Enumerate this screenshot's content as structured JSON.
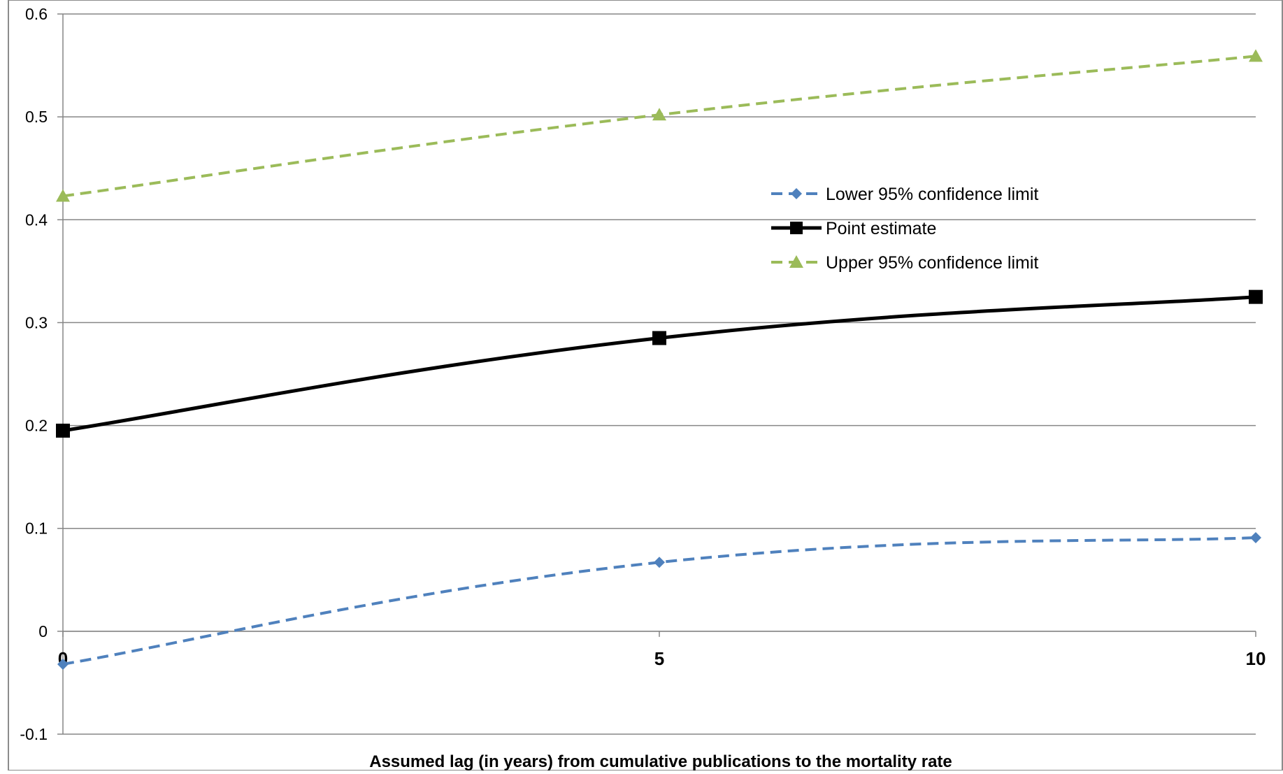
{
  "chart_data": {
    "type": "line",
    "title": "",
    "xlabel": "Assumed lag (in years) from cumulative publications to the mortality rate",
    "ylabel": "",
    "x": [
      0,
      5,
      10
    ],
    "xlim": [
      0,
      10
    ],
    "ylim": [
      -0.1,
      0.6
    ],
    "x_ticks": [
      "0",
      "5",
      "10"
    ],
    "y_ticks": [
      "0.6",
      "0.5",
      "0.4",
      "0.3",
      "0.2",
      "0.1",
      "0",
      "-0.1"
    ],
    "grid": "horizontal",
    "legend_position": "upper-middle-right",
    "series": [
      {
        "name": "Lower 95% confidence limit",
        "values": [
          -0.032,
          0.067,
          0.091
        ],
        "color": "#4f81bd",
        "dash": true,
        "marker": "diamond"
      },
      {
        "name": "Point estimate",
        "values": [
          0.195,
          0.285,
          0.325
        ],
        "color": "#000000",
        "dash": false,
        "marker": "square"
      },
      {
        "name": "Upper 95% confidence limit",
        "values": [
          0.423,
          0.502,
          0.559
        ],
        "color": "#9bbb59",
        "dash": true,
        "marker": "triangle"
      }
    ]
  }
}
